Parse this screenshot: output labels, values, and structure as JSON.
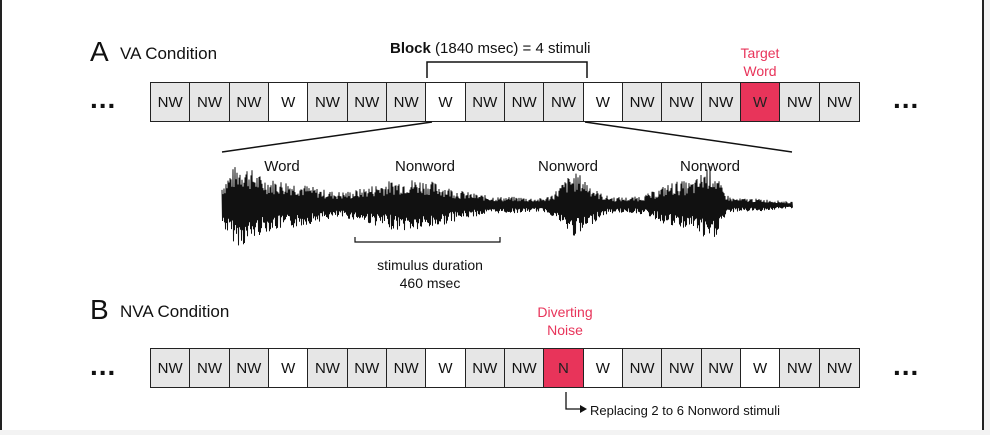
{
  "colors": {
    "highlight": "#e8345a",
    "nonword_fill": "#e6e6e6",
    "word_fill": "#ffffff"
  },
  "panel_a": {
    "letter": "A",
    "title": "VA Condition",
    "block_label_bold": "Block",
    "block_label_rest": " (1840 msec) = 4 stimuli",
    "target_line1": "Target",
    "target_line2": "Word",
    "ellipsis": "...",
    "sequence": [
      "NW",
      "NW",
      "NW",
      "W",
      "NW",
      "NW",
      "NW",
      "W",
      "NW",
      "NW",
      "NW",
      "W",
      "NW",
      "NW",
      "NW",
      "W",
      "NW",
      "NW"
    ],
    "highlight_index": 15,
    "waveform_labels": [
      "Word",
      "Nonword",
      "Nonword",
      "Nonword"
    ],
    "duration_line1": "stimulus duration",
    "duration_line2": "460 msec"
  },
  "panel_b": {
    "letter": "B",
    "title": "NVA Condition",
    "noise_line1": "Diverting",
    "noise_line2": "Noise",
    "ellipsis": "...",
    "sequence": [
      "NW",
      "NW",
      "NW",
      "W",
      "NW",
      "NW",
      "NW",
      "W",
      "NW",
      "NW",
      "N",
      "W",
      "NW",
      "NW",
      "NW",
      "W",
      "NW",
      "NW"
    ],
    "highlight_index": 10,
    "replace_note": "Replacing 2 to 6 Nonword stimuli"
  }
}
